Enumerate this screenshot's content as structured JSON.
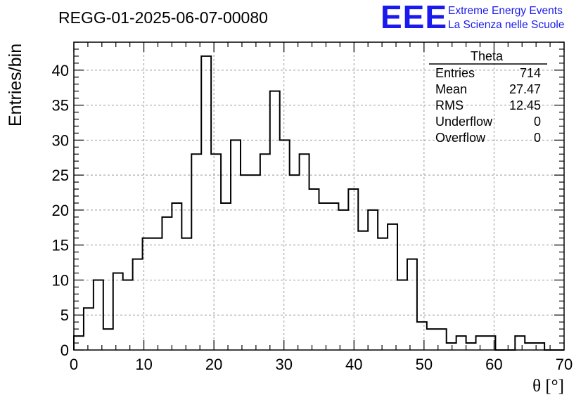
{
  "chart_data": {
    "type": "bar",
    "title": "REGG-01-2025-06-07-00080",
    "xlabel": "θ [°]",
    "ylabel": "Entries/bin",
    "xlim": [
      0,
      70
    ],
    "ylim": [
      0,
      44
    ],
    "x_ticks": [
      0,
      10,
      20,
      30,
      40,
      50,
      60,
      70
    ],
    "y_ticks": [
      0,
      5,
      10,
      15,
      20,
      25,
      30,
      35,
      40
    ],
    "grid": true,
    "bin_width": 1.4,
    "values": [
      2,
      6,
      10,
      3,
      11,
      10,
      13,
      16,
      16,
      19,
      21,
      16,
      28,
      42,
      28,
      21,
      30,
      25,
      25,
      28,
      37,
      30,
      25,
      28,
      23,
      21,
      21,
      20,
      23,
      17,
      20,
      16,
      18,
      10,
      13,
      4,
      3,
      3,
      1,
      2,
      1,
      2,
      2,
      0,
      0,
      2,
      1,
      1,
      0,
      0
    ],
    "line_color": "#000000"
  },
  "logo": {
    "mark": "EEE",
    "line1": "Extreme Energy Events",
    "line2": "La Scienza nelle Scuole",
    "color": "#1a1aee"
  },
  "stats": {
    "title": "Theta",
    "rows": [
      {
        "label": "Entries",
        "value": "714"
      },
      {
        "label": "Mean",
        "value": "27.47"
      },
      {
        "label": "RMS",
        "value": "12.45"
      },
      {
        "label": "Underflow",
        "value": "0"
      },
      {
        "label": "Overflow",
        "value": "0"
      }
    ]
  }
}
